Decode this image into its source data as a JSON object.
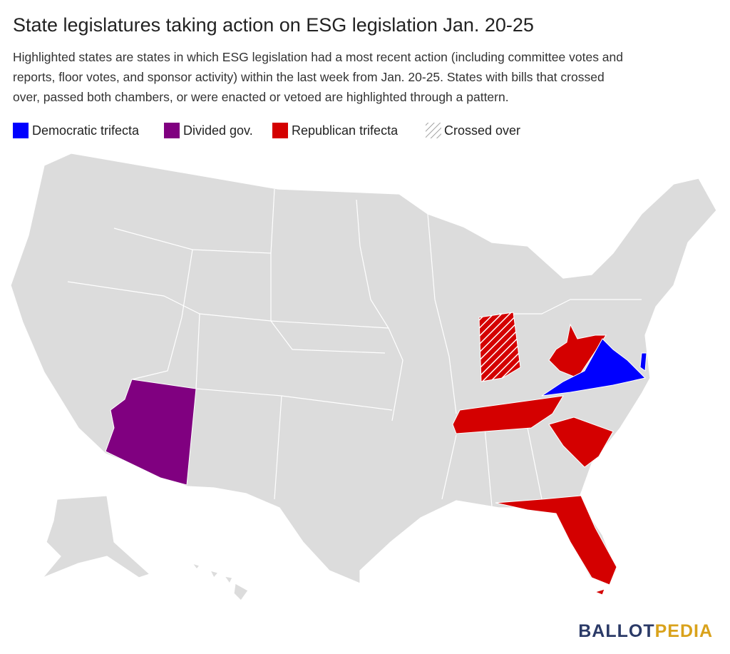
{
  "header": {
    "title": "State legislatures taking action on ESG legislation Jan. 20-25",
    "subtitle": [
      "Highlighted states are states in which ESG legislation had a most recent action (including committee votes and",
      "reports, floor votes, and sponsor activity) within the last week from Jan. 20-25. States with bills that crossed",
      "over, passed both chambers, or were enacted or vetoed are highlighted through a pattern."
    ]
  },
  "legend": {
    "items": [
      {
        "label": "Democratic trifecta",
        "color": "#0000ff"
      },
      {
        "label": "Divided gov.",
        "color": "#800080"
      },
      {
        "label": "Republican trifecta",
        "color": "#d40000"
      },
      {
        "label": "Crossed over",
        "pattern": "hatch"
      }
    ]
  },
  "logo": {
    "first": "BALLOT",
    "second": "PEDIA"
  }
}
